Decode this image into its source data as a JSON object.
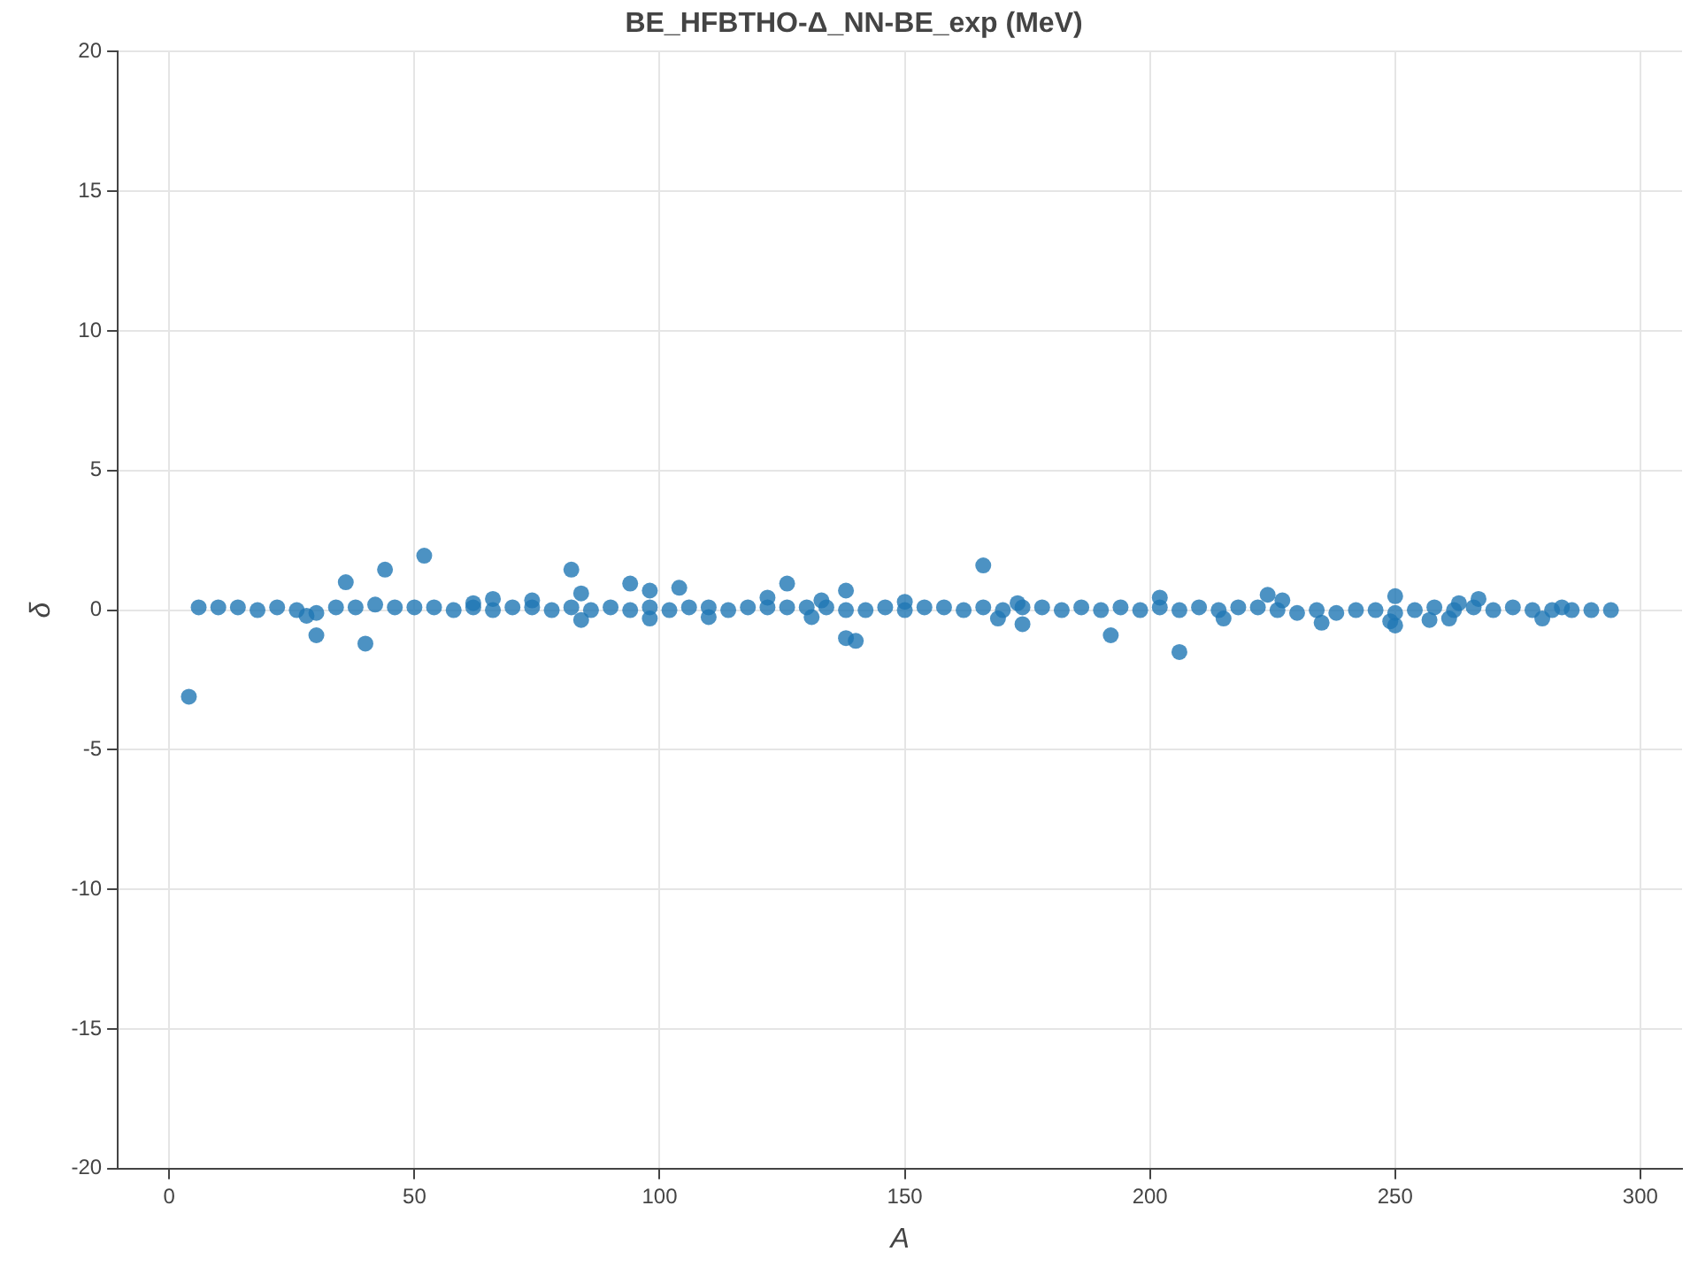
{
  "chart_data": {
    "type": "scatter",
    "title": "BE_HFBTHO-Δ_NN-BE_exp (MeV)",
    "xlabel": "A",
    "ylabel": "δ",
    "xlim": [
      -10.5,
      308.5
    ],
    "xticks": [
      0,
      50,
      100,
      150,
      200,
      250,
      300
    ],
    "ylim": [
      -20,
      20
    ],
    "yticks": [
      -20,
      -15,
      -10,
      -5,
      0,
      5,
      10,
      15,
      20
    ],
    "grid": true,
    "legend": false,
    "marker": "circle",
    "series": [
      {
        "color": "#1f77b4",
        "x": [
          6,
          10,
          14,
          18,
          22,
          26,
          30,
          34,
          38,
          42,
          46,
          50,
          54,
          58,
          62,
          66,
          70,
          74,
          78,
          82,
          86,
          90,
          94,
          98,
          102,
          106,
          110,
          114,
          118,
          122,
          126,
          130,
          134,
          138,
          142,
          146,
          150,
          154,
          158,
          162,
          166,
          170,
          174,
          178,
          182,
          186,
          190,
          194,
          198,
          202,
          206,
          210,
          214,
          218,
          222,
          226,
          230,
          234,
          238,
          242,
          246,
          250,
          254,
          258,
          262,
          266,
          270,
          274,
          278,
          282,
          286,
          290,
          294,
          4,
          30,
          40,
          36,
          44,
          52,
          82,
          84,
          84,
          94,
          98,
          98,
          104,
          126,
          138,
          138,
          140,
          166,
          174,
          192,
          206,
          224,
          250,
          250,
          28,
          62,
          66,
          74,
          110,
          122,
          131,
          133,
          150,
          169,
          173,
          202,
          215,
          227,
          235,
          249,
          257,
          261,
          263,
          267,
          280,
          284
        ],
        "values": [
          0.1,
          0.1,
          0.1,
          0,
          0.1,
          0,
          -0.1,
          0.1,
          0.1,
          0.2,
          0.1,
          0.1,
          0.1,
          0,
          0.1,
          0,
          0.1,
          0.1,
          0,
          0.1,
          0,
          0.1,
          0,
          0.1,
          0,
          0.1,
          0.1,
          0,
          0.1,
          0.1,
          0.1,
          0.1,
          0.1,
          0,
          0,
          0.1,
          0,
          0.1,
          0.1,
          0,
          0.1,
          0,
          0.1,
          0.1,
          0,
          0.1,
          0,
          0.1,
          0,
          0.1,
          0,
          0.1,
          0,
          0.1,
          0.1,
          0,
          -0.1,
          0,
          -0.1,
          0,
          0,
          -0.1,
          0,
          0.1,
          0,
          0.1,
          0,
          0.1,
          0,
          0,
          0,
          0,
          0,
          -3.1,
          -0.9,
          -1.2,
          1.0,
          1.45,
          1.95,
          1.45,
          0.6,
          -0.35,
          0.95,
          0.7,
          -0.3,
          0.8,
          0.95,
          0.7,
          -1.0,
          -1.1,
          1.6,
          -0.5,
          -0.9,
          -1.5,
          0.55,
          0.5,
          -0.55,
          -0.2,
          0.25,
          0.4,
          0.35,
          -0.25,
          0.45,
          -0.25,
          0.35,
          0.3,
          -0.3,
          0.25,
          0.45,
          -0.3,
          0.35,
          -0.45,
          -0.4,
          -0.35,
          -0.3,
          0.25,
          0.4,
          -0.3,
          0.1
        ]
      }
    ]
  }
}
